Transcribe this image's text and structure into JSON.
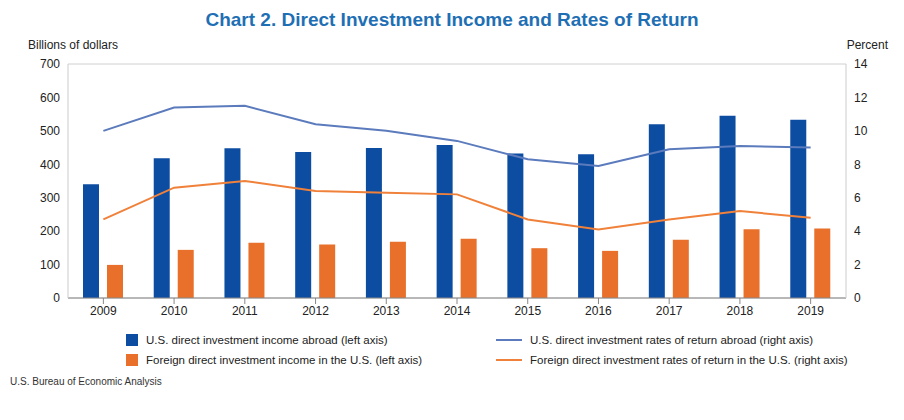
{
  "chart_data": {
    "type": "bar",
    "title": "Chart 2. Direct Investment Income and Rates of Return",
    "y_label": "Billions of dollars",
    "y2_label": "Percent",
    "source": "U.S. Bureau of Economic Analysis",
    "categories": [
      "2009",
      "2010",
      "2011",
      "2012",
      "2013",
      "2014",
      "2015",
      "2016",
      "2017",
      "2018",
      "2019"
    ],
    "series": [
      {
        "name": "U.S. direct investment income abroad (left axis)",
        "type": "bar",
        "color": "#0c4da2",
        "values": [
          340,
          418,
          448,
          437,
          449,
          458,
          432,
          430,
          520,
          545,
          533
        ]
      },
      {
        "name": "Foreign direct investment income in the U.S. (left axis)",
        "type": "bar",
        "color": "#e8702a",
        "values": [
          99,
          144,
          165,
          160,
          168,
          177,
          149,
          141,
          174,
          206,
          208
        ]
      },
      {
        "name": "U.S. direct investment rates of return abroad (right axis)",
        "type": "line",
        "axis": "y2",
        "color": "#5b7bbd",
        "marker": "none",
        "values": [
          10.0,
          11.4,
          11.5,
          10.4,
          10.0,
          9.4,
          8.3,
          7.9,
          8.9,
          9.1,
          9.0
        ]
      },
      {
        "name": "Foreign direct investment rates of return in the U.S. (right axis)",
        "type": "line",
        "axis": "y2",
        "color": "#f0813a",
        "marker": "none",
        "values": [
          4.7,
          6.6,
          7.0,
          6.4,
          6.3,
          6.2,
          4.7,
          4.1,
          4.7,
          5.2,
          4.8
        ]
      }
    ],
    "ylim": [
      0,
      700
    ],
    "yticks": [
      0,
      100,
      200,
      300,
      400,
      500,
      600,
      700
    ],
    "y2lim": [
      0,
      14
    ],
    "y2ticks": [
      0,
      2,
      4,
      6,
      8,
      10,
      12,
      14
    ],
    "grid": true,
    "legend": "bottom"
  }
}
